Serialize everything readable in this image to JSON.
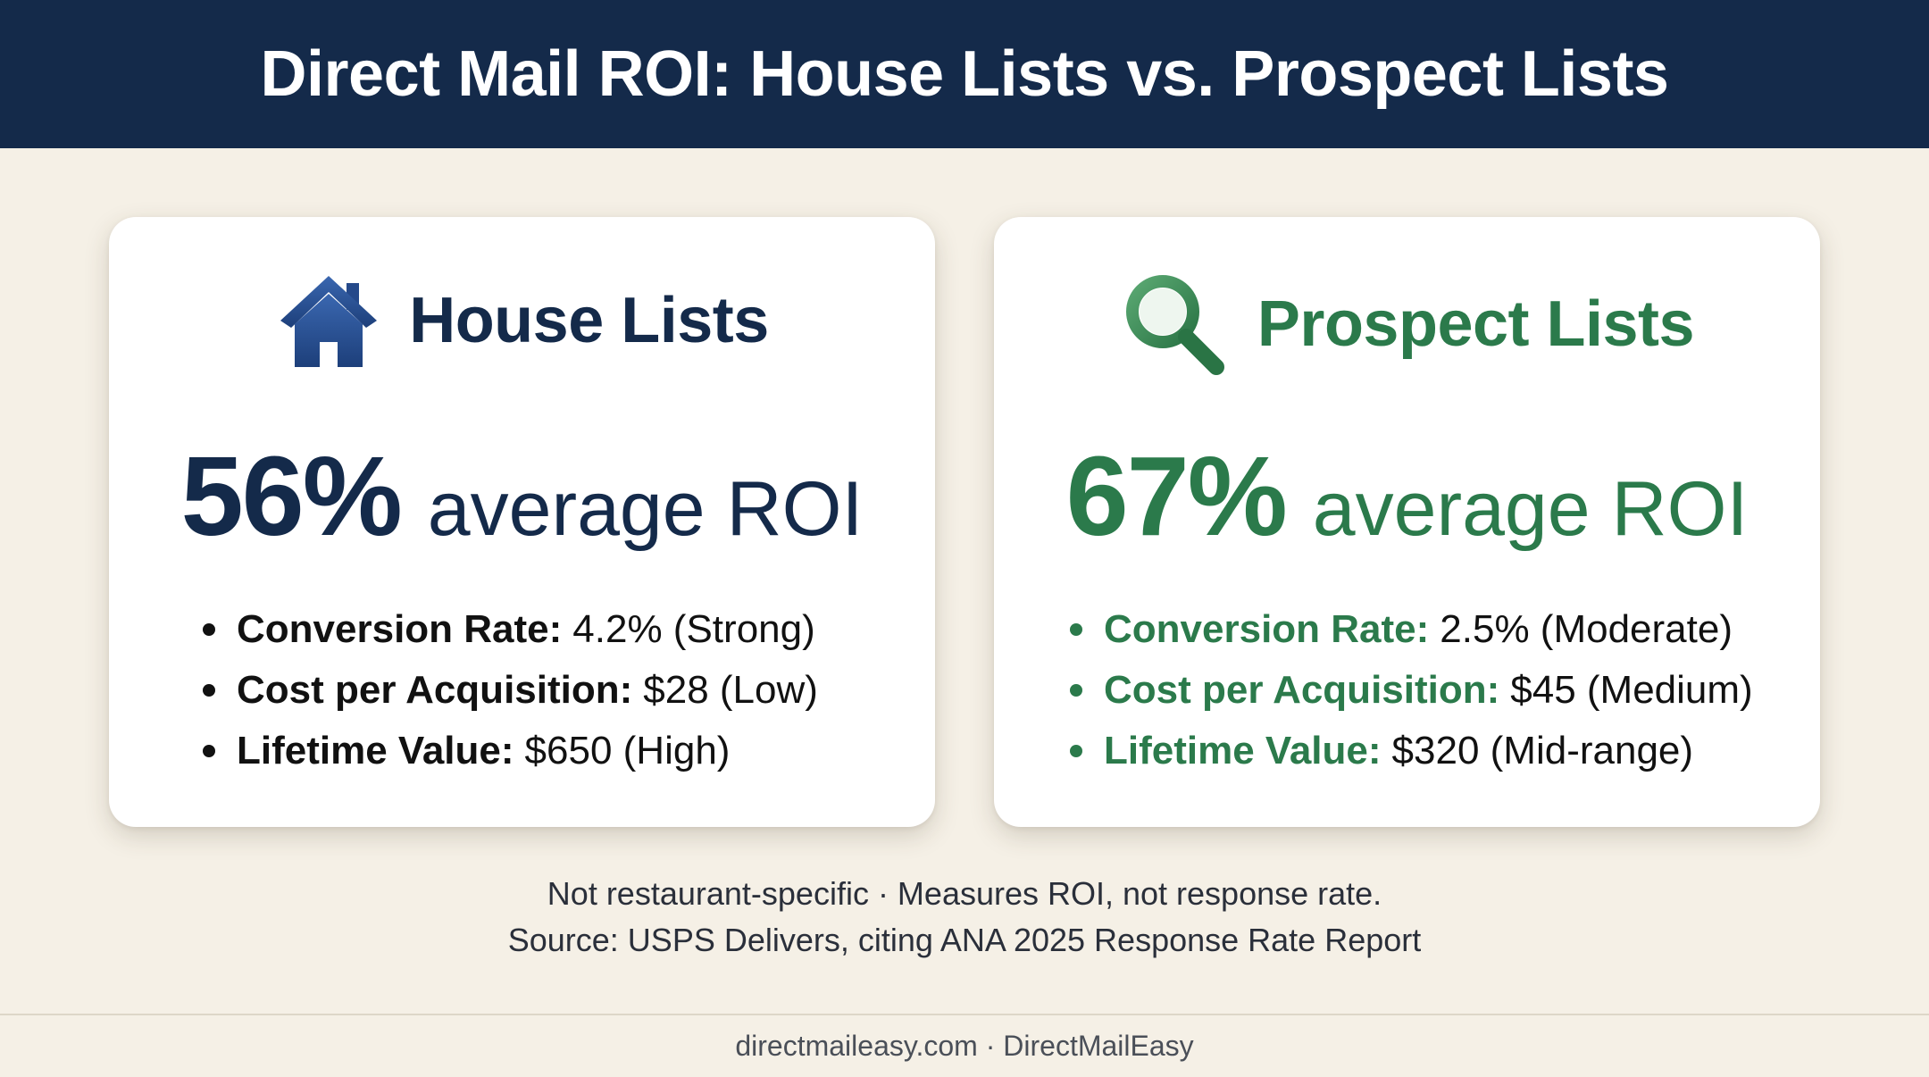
{
  "header": {
    "title": "Direct Mail ROI: House Lists vs. Prospect Lists"
  },
  "colors": {
    "navy": "#142a4a",
    "green": "#2b7a4b",
    "background": "#f5f0e6"
  },
  "house": {
    "icon": "house-icon",
    "title": "House Lists",
    "roi_value": "56%",
    "roi_text": "average ROI",
    "bullets": [
      {
        "key": "Conversion Rate:",
        "value": "4.2% (Strong)"
      },
      {
        "key": "Cost per Acquisition:",
        "value": "$28 (Low)"
      },
      {
        "key": "Lifetime Value:",
        "value": "$650 (High)"
      }
    ]
  },
  "prospect": {
    "icon": "magnifier-icon",
    "title": "Prospect Lists",
    "roi_value": "67%",
    "roi_text": "average ROI",
    "bullets": [
      {
        "key": "Conversion Rate:",
        "value": "2.5% (Moderate)"
      },
      {
        "key": "Cost per Acquisition:",
        "value": "$45 (Medium)"
      },
      {
        "key": "Lifetime Value:",
        "value": "$320 (Mid-range)"
      }
    ]
  },
  "footnote": {
    "line1": "Not restaurant-specific · Measures ROI, not response rate.",
    "line2": "Source: USPS Delivers, citing ANA 2025 Response Rate Report"
  },
  "footer": {
    "site": "directmaileasy.com · DirectMailEasy"
  }
}
